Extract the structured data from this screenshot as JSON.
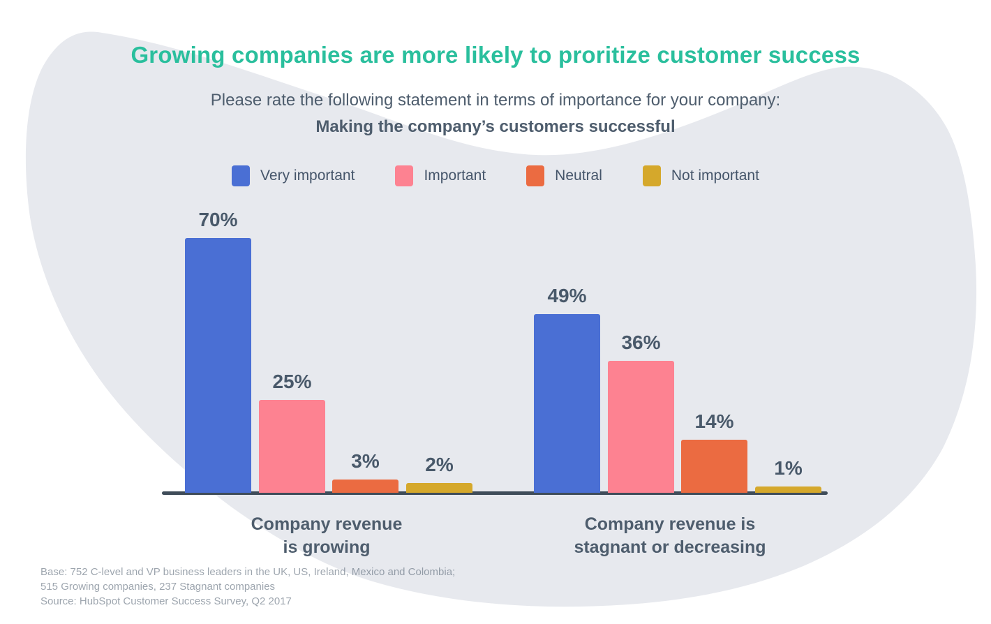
{
  "title": "Growing companies are more likely to proritize customer success",
  "subtitle": {
    "line1": "Please rate the following statement in terms of importance for your company:",
    "line2": "Making the company’s customers successful"
  },
  "chart_data": {
    "type": "bar",
    "title": "Growing companies are more likely to proritize customer success",
    "groups": [
      {
        "label_lines": [
          "Company revenue",
          "is growing"
        ]
      },
      {
        "label_lines": [
          "Company revenue is",
          "stagnant or decreasing"
        ]
      }
    ],
    "series": [
      {
        "name": "Very important",
        "color": "#4a6fd4",
        "values": [
          70,
          49
        ]
      },
      {
        "name": "Important",
        "color": "#fd8291",
        "values": [
          25,
          36
        ]
      },
      {
        "name": "Neutral",
        "color": "#eb6b41",
        "values": [
          3,
          14
        ]
      },
      {
        "name": "Not important",
        "color": "#d5a82b",
        "values": [
          2,
          1
        ]
      }
    ],
    "value_unit": "%",
    "ylim": [
      0,
      75
    ],
    "grid": false,
    "legend_position": "top"
  },
  "footer": {
    "lines": [
      "Base: 752 C-level and VP business leaders in the UK, US, Ireland, Mexico and Colombia;",
      "515 Growing companies, 237 Stagnant companies",
      "Source: HubSpot Customer Success Survey, Q2 2017"
    ]
  },
  "colors": {
    "accent_teal": "#2abf9d",
    "text": "#4e5d6d",
    "data_label": "#49596a",
    "axis": "#3f4c59",
    "blob_background": "#e7e9ee"
  }
}
